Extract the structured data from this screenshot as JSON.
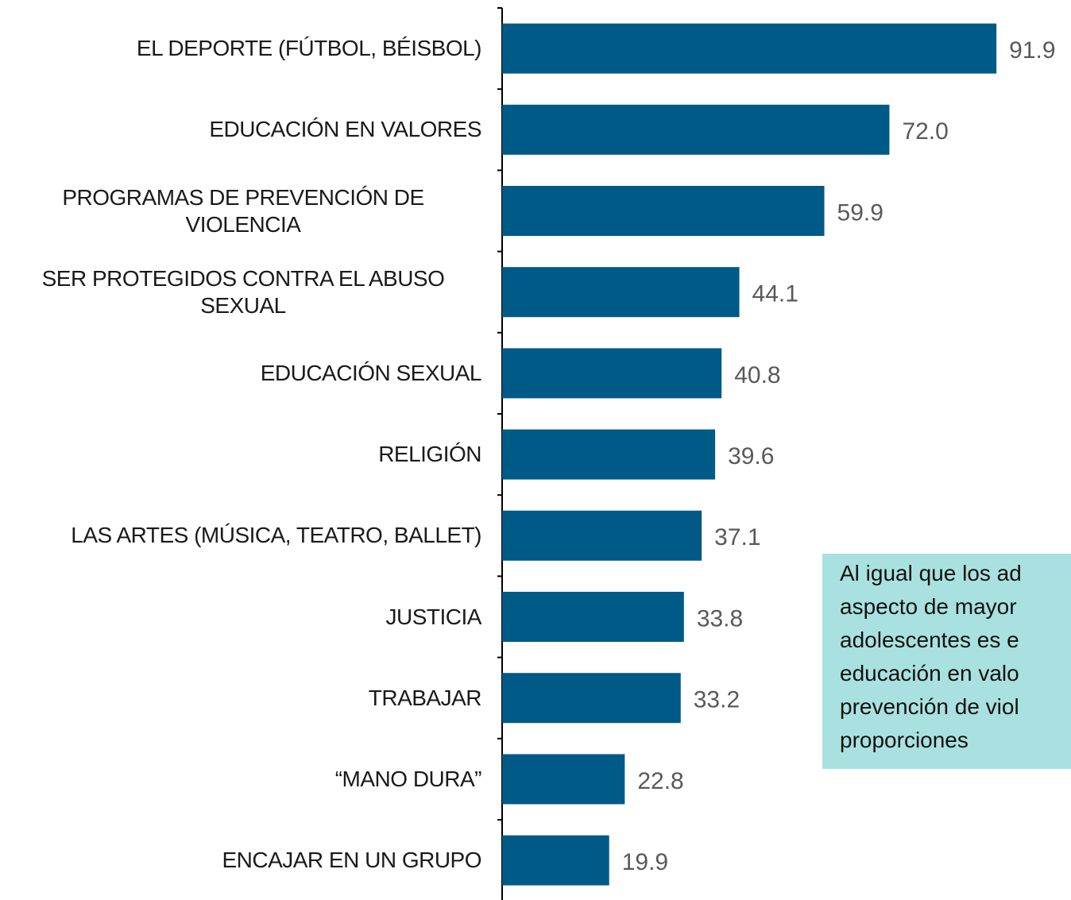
{
  "chart_data": {
    "type": "bar",
    "orientation": "horizontal",
    "categories": [
      "EL DEPORTE (FÚTBOL, BÉISBOL)",
      "EDUCACIÓN EN VALORES",
      "PROGRAMAS DE PREVENCIÓN DE VIOLENCIA",
      "SER PROTEGIDOS CONTRA EL ABUSO SEXUAL",
      "EDUCACIÓN SEXUAL",
      "RELIGIÓN",
      "LAS ARTES (MÚSICA, TEATRO, BALLET)",
      "JUSTICIA",
      "TRABAJAR",
      "“MANO DURA”",
      "ENCAJAR EN UN GRUPO"
    ],
    "values": [
      91.9,
      72.0,
      59.9,
      44.1,
      40.8,
      39.6,
      37.1,
      33.8,
      33.2,
      22.8,
      19.9
    ],
    "value_labels": [
      "91.9",
      "72.0",
      "59.9",
      "44.1",
      "40.8",
      "39.6",
      "37.1",
      "33.8",
      "33.2",
      "22.8",
      "19.9"
    ],
    "color": "#005a87",
    "xlim": [
      0,
      100
    ],
    "annotation": [
      "Al igual que los ad",
      "aspecto de mayor",
      "adolescentes es e",
      "educación en valo",
      "prevención de viol",
      "proporciones"
    ]
  }
}
